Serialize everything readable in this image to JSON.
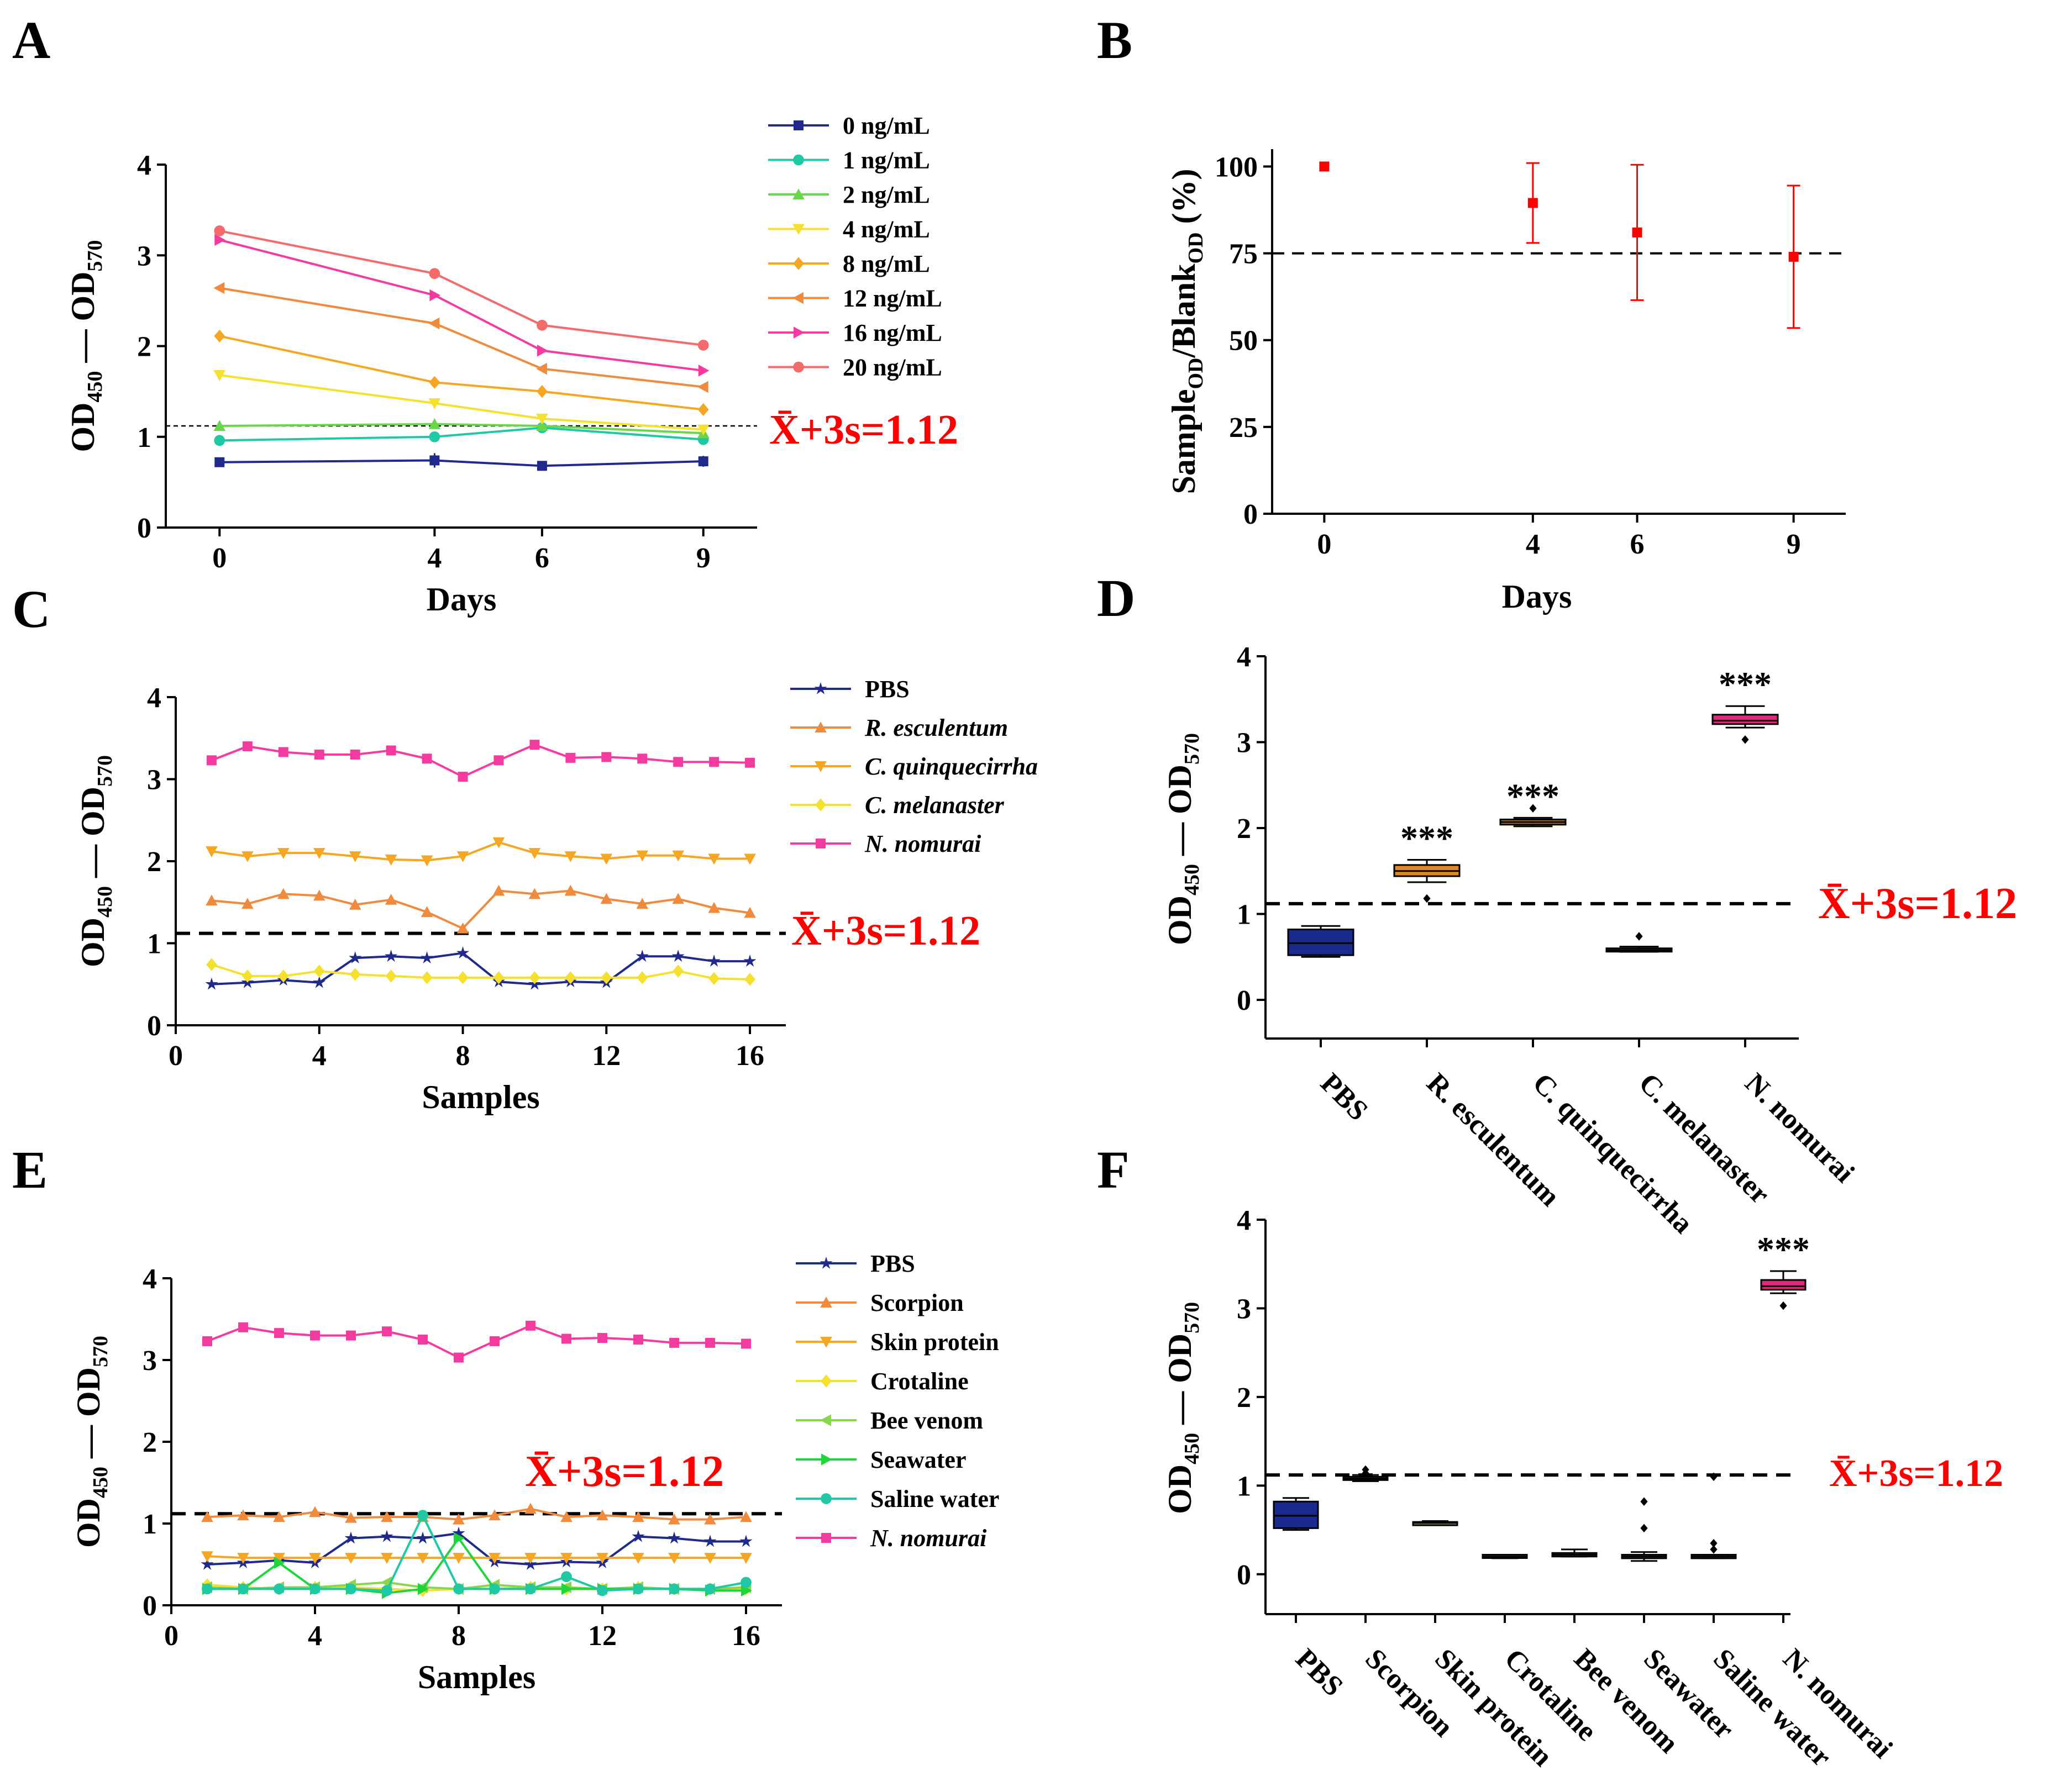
{
  "panel_labels": [
    "A",
    "B",
    "C",
    "D",
    "E",
    "F"
  ],
  "threshold_text": "X̄+3s=1.12",
  "chart_data": [
    {
      "panel": "A",
      "type": "line",
      "xlabel": "Days",
      "ylabel": "OD450 - OD570",
      "ylabel_parts": [
        "OD",
        "450",
        " — OD",
        "570"
      ],
      "x": [
        0,
        4,
        6,
        9
      ],
      "xticks": [
        0,
        4,
        6,
        9
      ],
      "xlim": [
        -1,
        10
      ],
      "ylim": [
        0,
        4
      ],
      "yticks": [
        0,
        1,
        2,
        3,
        4
      ],
      "threshold": 1.12,
      "series": [
        {
          "name": "0 ng/mL",
          "color": "#1f2a8c",
          "marker": "square",
          "values": [
            0.72,
            0.74,
            0.68,
            0.73
          ],
          "errors": [
            0.03,
            0.08,
            0.02,
            0.06
          ]
        },
        {
          "name": "1 ng/mL",
          "color": "#1fc9a6",
          "marker": "circle",
          "values": [
            0.96,
            1.0,
            1.1,
            0.97
          ],
          "errors": [
            0.05,
            0.03,
            0.03,
            0.03
          ]
        },
        {
          "name": "2 ng/mL",
          "color": "#6ad64a",
          "marker": "triangle",
          "values": [
            1.12,
            1.14,
            1.12,
            1.04
          ],
          "errors": [
            0.02,
            0.02,
            0.02,
            0.02
          ]
        },
        {
          "name": "4 ng/mL",
          "color": "#f5e02e",
          "marker": "triangle-down",
          "values": [
            1.68,
            1.37,
            1.2,
            1.08
          ],
          "errors": [
            0.05,
            0.03,
            0.02,
            0.02
          ]
        },
        {
          "name": "8 ng/mL",
          "color": "#f5a623",
          "marker": "diamond",
          "values": [
            2.11,
            1.6,
            1.5,
            1.3
          ],
          "errors": [
            0.03,
            0.02,
            0.02,
            0.02
          ]
        },
        {
          "name": "12 ng/mL",
          "color": "#f08a3c",
          "marker": "triangle-left",
          "values": [
            2.64,
            2.25,
            1.75,
            1.55
          ],
          "errors": [
            0.02,
            0.02,
            0.02,
            0.02
          ]
        },
        {
          "name": "16 ng/mL",
          "color": "#f53aa0",
          "marker": "triangle-right",
          "values": [
            3.17,
            2.56,
            1.95,
            1.73
          ],
          "errors": [
            0.02,
            0.03,
            0.02,
            0.02
          ]
        },
        {
          "name": "20 ng/mL",
          "color": "#f56a6a",
          "marker": "circle",
          "values": [
            3.27,
            2.8,
            2.23,
            2.01
          ],
          "errors": [
            0.02,
            0.02,
            0.02,
            0.02
          ]
        }
      ]
    },
    {
      "panel": "B",
      "type": "scatter",
      "xlabel": "Days",
      "ylabel": "SampleOD/BlankOD (%)",
      "ylabel_parts": [
        "Sample",
        "OD",
        "/Blank",
        "OD",
        " (%)"
      ],
      "x": [
        0,
        4,
        6,
        9
      ],
      "xticks": [
        0,
        4,
        6,
        9
      ],
      "xlim": [
        -1,
        10
      ],
      "ylim": [
        0,
        105
      ],
      "yticks": [
        0,
        25,
        50,
        75,
        100
      ],
      "threshold": 75,
      "series": [
        {
          "name": "ratio",
          "color": "#ff0000",
          "values": [
            100,
            89.5,
            81,
            74
          ],
          "errors": [
            0,
            11.5,
            19.5,
            20.5
          ]
        }
      ]
    },
    {
      "panel": "C",
      "type": "line",
      "xlabel": "Samples",
      "ylabel": "OD450 - OD570",
      "ylabel_parts": [
        "OD",
        "450",
        " — OD",
        "570"
      ],
      "x": [
        1,
        2,
        3,
        4,
        5,
        6,
        7,
        8,
        9,
        10,
        11,
        12,
        13,
        14,
        15,
        16
      ],
      "xticks": [
        0,
        4,
        8,
        12,
        16
      ],
      "xlim": [
        0,
        17
      ],
      "ylim": [
        0,
        4
      ],
      "yticks": [
        0,
        1,
        2,
        3,
        4
      ],
      "threshold": 1.12,
      "series": [
        {
          "name": "PBS",
          "italic": false,
          "color": "#1f2a8c",
          "marker": "star",
          "values": [
            0.5,
            0.52,
            0.55,
            0.52,
            0.82,
            0.84,
            0.82,
            0.88,
            0.53,
            0.5,
            0.53,
            0.52,
            0.84,
            0.84,
            0.78,
            0.78
          ]
        },
        {
          "name": "R. esculentum",
          "italic": true,
          "color": "#f08a3c",
          "marker": "triangle",
          "values": [
            1.52,
            1.48,
            1.6,
            1.58,
            1.47,
            1.53,
            1.38,
            1.18,
            1.64,
            1.6,
            1.64,
            1.54,
            1.48,
            1.54,
            1.43,
            1.37
          ]
        },
        {
          "name": "C. quinquecirrha",
          "italic": true,
          "color": "#f5a623",
          "marker": "triangle-down",
          "values": [
            2.12,
            2.06,
            2.1,
            2.1,
            2.06,
            2.02,
            2.01,
            2.06,
            2.23,
            2.1,
            2.06,
            2.03,
            2.07,
            2.07,
            2.03,
            2.03
          ]
        },
        {
          "name": "C. melanaster",
          "italic": true,
          "color": "#f5e02e",
          "marker": "diamond",
          "values": [
            0.74,
            0.6,
            0.6,
            0.66,
            0.62,
            0.6,
            0.58,
            0.58,
            0.58,
            0.58,
            0.58,
            0.58,
            0.58,
            0.66,
            0.57,
            0.56
          ]
        },
        {
          "name": "N. nomurai",
          "italic": true,
          "color": "#f53aa0",
          "marker": "square",
          "values": [
            3.23,
            3.4,
            3.33,
            3.3,
            3.3,
            3.35,
            3.25,
            3.03,
            3.23,
            3.42,
            3.26,
            3.27,
            3.25,
            3.21,
            3.21,
            3.2
          ]
        }
      ]
    },
    {
      "panel": "D",
      "type": "box",
      "ylabel": "OD450 - OD570",
      "ylabel_parts": [
        "OD",
        "450",
        " — OD",
        "570"
      ],
      "ylim": [
        -0.45,
        4
      ],
      "yticks": [
        0,
        1,
        2,
        3,
        4
      ],
      "threshold": 1.12,
      "categories": [
        "PBS",
        "R. esculentum",
        "C. quinquecirrha",
        "C. melanaster",
        "N. nomurai"
      ],
      "boxes": [
        {
          "q1": 0.52,
          "median": 0.66,
          "q3": 0.82,
          "min": 0.5,
          "max": 0.86,
          "outliers": [],
          "color": "#1a2a8f",
          "sig": ""
        },
        {
          "q1": 1.44,
          "median": 1.5,
          "q3": 1.57,
          "min": 1.37,
          "max": 1.63,
          "outliers": [
            1.18
          ],
          "color": "#e08a1e",
          "sig": "***"
        },
        {
          "q1": 2.04,
          "median": 2.07,
          "q3": 2.1,
          "min": 2.02,
          "max": 2.12,
          "outliers": [
            2.23
          ],
          "color": "#b8731a",
          "sig": "***"
        },
        {
          "q1": 0.57,
          "median": 0.58,
          "q3": 0.6,
          "min": 0.56,
          "max": 0.62,
          "outliers": [
            0.74
          ],
          "color": "#7a7a5a",
          "sig": ""
        },
        {
          "q1": 3.21,
          "median": 3.25,
          "q3": 3.32,
          "min": 3.17,
          "max": 3.42,
          "outliers": [
            3.03
          ],
          "color": "#e0287f",
          "sig": "***"
        }
      ]
    },
    {
      "panel": "E",
      "type": "line",
      "xlabel": "Samples",
      "ylabel": "OD450 - OD570",
      "ylabel_parts": [
        "OD",
        "450",
        " — OD",
        "570"
      ],
      "x": [
        1,
        2,
        3,
        4,
        5,
        6,
        7,
        8,
        9,
        10,
        11,
        12,
        13,
        14,
        15,
        16
      ],
      "xticks": [
        0,
        4,
        8,
        12,
        16
      ],
      "xlim": [
        0,
        17
      ],
      "ylim": [
        0,
        4
      ],
      "yticks": [
        0,
        1,
        2,
        3,
        4
      ],
      "threshold": 1.12,
      "series": [
        {
          "name": "PBS",
          "italic": false,
          "color": "#1f2a8c",
          "marker": "star",
          "values": [
            0.5,
            0.52,
            0.55,
            0.52,
            0.82,
            0.84,
            0.82,
            0.88,
            0.53,
            0.5,
            0.53,
            0.52,
            0.84,
            0.82,
            0.78,
            0.78
          ]
        },
        {
          "name": "Scorpion",
          "italic": false,
          "color": "#f08a3c",
          "marker": "triangle",
          "values": [
            1.08,
            1.1,
            1.08,
            1.14,
            1.07,
            1.08,
            1.08,
            1.05,
            1.1,
            1.18,
            1.08,
            1.1,
            1.08,
            1.05,
            1.05,
            1.08
          ]
        },
        {
          "name": "Skin protein",
          "italic": false,
          "color": "#f5a623",
          "marker": "triangle-down",
          "values": [
            0.6,
            0.58,
            0.58,
            0.58,
            0.58,
            0.58,
            0.58,
            0.58,
            0.58,
            0.58,
            0.58,
            0.58,
            0.58,
            0.58,
            0.58,
            0.58
          ]
        },
        {
          "name": "Crotaline",
          "italic": false,
          "color": "#f5e02e",
          "marker": "diamond",
          "values": [
            0.25,
            0.22,
            0.2,
            0.22,
            0.22,
            0.2,
            0.18,
            0.2,
            0.2,
            0.22,
            0.2,
            0.2,
            0.22,
            0.2,
            0.2,
            0.2
          ]
        },
        {
          "name": "Bee venom",
          "italic": false,
          "color": "#8ad64a",
          "marker": "triangle-left",
          "values": [
            0.22,
            0.2,
            0.22,
            0.22,
            0.25,
            0.28,
            0.22,
            0.2,
            0.25,
            0.22,
            0.22,
            0.2,
            0.22,
            0.2,
            0.2,
            0.22
          ]
        },
        {
          "name": "Seawater",
          "italic": false,
          "color": "#1ed63a",
          "marker": "triangle-right",
          "values": [
            0.2,
            0.2,
            0.52,
            0.2,
            0.2,
            0.15,
            0.2,
            0.82,
            0.2,
            0.2,
            0.2,
            0.2,
            0.2,
            0.2,
            0.18,
            0.18
          ]
        },
        {
          "name": "Saline water",
          "italic": false,
          "color": "#1fc9a6",
          "marker": "circle",
          "values": [
            0.2,
            0.2,
            0.2,
            0.2,
            0.2,
            0.18,
            1.1,
            0.2,
            0.2,
            0.2,
            0.35,
            0.18,
            0.2,
            0.2,
            0.2,
            0.28
          ]
        },
        {
          "name": "N. nomurai",
          "italic": true,
          "color": "#f53aa0",
          "marker": "square",
          "values": [
            3.23,
            3.4,
            3.33,
            3.3,
            3.3,
            3.35,
            3.25,
            3.03,
            3.23,
            3.42,
            3.26,
            3.27,
            3.25,
            3.21,
            3.21,
            3.2
          ]
        }
      ]
    },
    {
      "panel": "F",
      "type": "box",
      "ylabel": "OD450 - OD570",
      "ylabel_parts": [
        "OD",
        "450",
        " — OD",
        "570"
      ],
      "ylim": [
        -0.45,
        4
      ],
      "yticks": [
        0,
        1,
        2,
        3,
        4
      ],
      "threshold": 1.12,
      "categories": [
        "PBS",
        "Scorpion",
        "Skin protein",
        "Crotaline",
        "Bee venom",
        "Seawater",
        "Saline water",
        "N. nomurai"
      ],
      "boxes": [
        {
          "q1": 0.52,
          "median": 0.66,
          "q3": 0.82,
          "min": 0.5,
          "max": 0.86,
          "outliers": [],
          "color": "#1a2a8f",
          "sig": ""
        },
        {
          "q1": 1.07,
          "median": 1.08,
          "q3": 1.1,
          "min": 1.05,
          "max": 1.12,
          "outliers": [
            1.18,
            1.14
          ],
          "color": "#b87a3a",
          "sig": ""
        },
        {
          "q1": 0.57,
          "median": 0.58,
          "q3": 0.59,
          "min": 0.56,
          "max": 0.6,
          "outliers": [],
          "color": "#8a8a6a",
          "sig": ""
        },
        {
          "q1": 0.2,
          "median": 0.2,
          "q3": 0.22,
          "min": 0.18,
          "max": 0.22,
          "outliers": [],
          "color": "#8a8a6a",
          "sig": ""
        },
        {
          "q1": 0.2,
          "median": 0.22,
          "q3": 0.24,
          "min": 0.2,
          "max": 0.28,
          "outliers": [],
          "color": "#6a8a5a",
          "sig": ""
        },
        {
          "q1": 0.18,
          "median": 0.2,
          "q3": 0.22,
          "min": 0.15,
          "max": 0.25,
          "outliers": [
            0.52,
            0.82
          ],
          "color": "#4a8a4a",
          "sig": ""
        },
        {
          "q1": 0.18,
          "median": 0.2,
          "q3": 0.22,
          "min": 0.18,
          "max": 0.22,
          "outliers": [
            0.28,
            0.35,
            1.1
          ],
          "color": "#3a7a6a",
          "sig": ""
        },
        {
          "q1": 3.21,
          "median": 3.25,
          "q3": 3.32,
          "min": 3.17,
          "max": 3.42,
          "outliers": [
            3.03
          ],
          "color": "#e0287f",
          "sig": "***"
        }
      ]
    }
  ]
}
